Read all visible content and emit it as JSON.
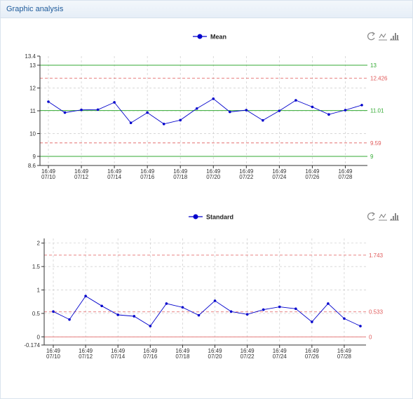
{
  "panel": {
    "title": "Graphic analysis"
  },
  "colors": {
    "series": "#0000cc",
    "control_limit": "#33aa33",
    "warning_limit": "#e05a5a",
    "grid": "#cccccc",
    "axis": "#333333"
  },
  "toolbar_icons": [
    "refresh-icon",
    "line-chart-icon",
    "bar-chart-icon"
  ],
  "chart_data": [
    {
      "type": "line",
      "legend": "Mean",
      "legend_position": "top-center",
      "grid": true,
      "ylim": [
        8.6,
        13.4
      ],
      "yticks": [
        "8.6",
        "9",
        "10",
        "11",
        "12",
        "13",
        "13.4"
      ],
      "xticks": [
        {
          "time": "16:49",
          "date": "07/10"
        },
        {
          "time": "16:49",
          "date": "07/12"
        },
        {
          "time": "16:49",
          "date": "07/14"
        },
        {
          "time": "16:49",
          "date": "07/16"
        },
        {
          "time": "16:49",
          "date": "07/18"
        },
        {
          "time": "16:49",
          "date": "07/20"
        },
        {
          "time": "16:49",
          "date": "07/22"
        },
        {
          "time": "16:49",
          "date": "07/24"
        },
        {
          "time": "16:49",
          "date": "07/26"
        },
        {
          "time": "16:49",
          "date": "07/28"
        }
      ],
      "values": [
        11.4,
        10.92,
        11.04,
        11.05,
        11.37,
        10.47,
        10.92,
        10.42,
        10.59,
        11.1,
        11.53,
        10.95,
        11.03,
        10.58,
        11.0,
        11.46,
        11.17,
        10.84,
        11.03,
        11.25
      ],
      "reference_lines": [
        {
          "value": 13,
          "label": "13",
          "style": "solid",
          "kind": "control"
        },
        {
          "value": 12.426,
          "label": "12.426",
          "style": "dashed",
          "kind": "warning"
        },
        {
          "value": 11.01,
          "label": "11.01",
          "style": "solid",
          "kind": "control"
        },
        {
          "value": 9.59,
          "label": "9.59",
          "style": "dashed",
          "kind": "warning"
        },
        {
          "value": 9,
          "label": "9",
          "style": "solid",
          "kind": "control"
        }
      ]
    },
    {
      "type": "line",
      "legend": "Standard",
      "legend_position": "top-center",
      "grid": true,
      "ylim": [
        -0.174,
        2.1
      ],
      "yticks": [
        "-0.174",
        "0",
        "0.5",
        "1",
        "1.5",
        "2"
      ],
      "xticks": [
        {
          "time": "16:49",
          "date": "07/10"
        },
        {
          "time": "16:49",
          "date": "07/12"
        },
        {
          "time": "16:49",
          "date": "07/14"
        },
        {
          "time": "16:49",
          "date": "07/16"
        },
        {
          "time": "16:49",
          "date": "07/18"
        },
        {
          "time": "16:49",
          "date": "07/20"
        },
        {
          "time": "16:49",
          "date": "07/22"
        },
        {
          "time": "16:49",
          "date": "07/24"
        },
        {
          "time": "16:49",
          "date": "07/26"
        },
        {
          "time": "16:49",
          "date": "07/28"
        }
      ],
      "values": [
        0.54,
        0.37,
        0.87,
        0.66,
        0.47,
        0.44,
        0.23,
        0.71,
        0.63,
        0.46,
        0.77,
        0.54,
        0.48,
        0.58,
        0.64,
        0.6,
        0.32,
        0.71,
        0.39,
        0.23
      ],
      "reference_lines": [
        {
          "value": 1.743,
          "label": "1.743",
          "style": "dashed",
          "kind": "warning"
        },
        {
          "value": 0.533,
          "label": "0.533",
          "style": "dashed",
          "kind": "warning"
        },
        {
          "value": 0,
          "label": "0",
          "style": "solid",
          "kind": "warning"
        }
      ]
    }
  ]
}
